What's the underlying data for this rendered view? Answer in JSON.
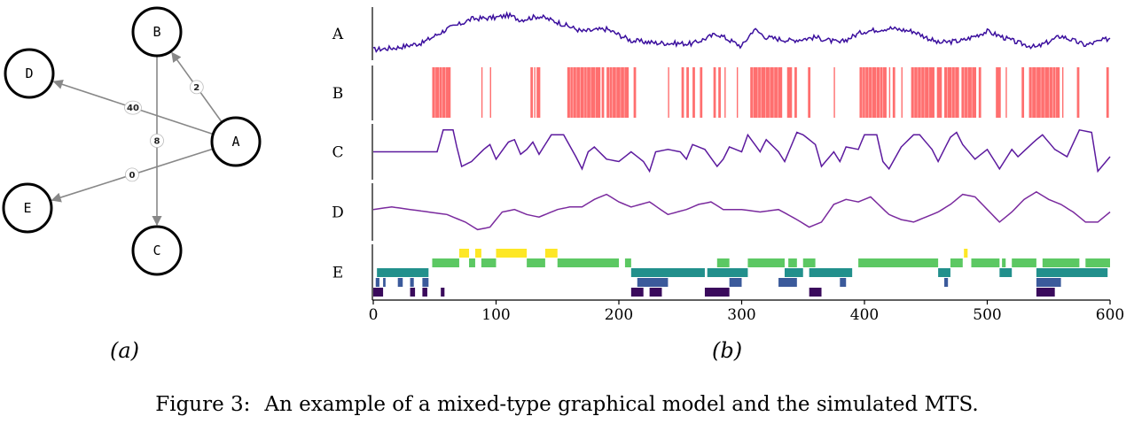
{
  "graph": {
    "nodes": [
      {
        "id": "B"
      },
      {
        "id": "D"
      },
      {
        "id": "A"
      },
      {
        "id": "E"
      },
      {
        "id": "C"
      }
    ],
    "edges": [
      {
        "from": "A",
        "to": "B",
        "weight": "2"
      },
      {
        "from": "A",
        "to": "D",
        "weight": "40"
      },
      {
        "from": "A",
        "to": "E",
        "weight": "0"
      },
      {
        "from": "B",
        "to": "C",
        "weight": "8"
      }
    ],
    "colors": {
      "node_stroke": "#000000",
      "edge": "#888888"
    }
  },
  "panels": {
    "a": "(a)",
    "b": "(b)"
  },
  "caption": {
    "number": "Figure 3:",
    "text": "An example of a mixed-type graphical model and the simulated MTS."
  },
  "chart_data": {
    "type": "line",
    "x_ticks": [
      "0",
      "100",
      "200",
      "300",
      "400",
      "500",
      "600"
    ],
    "xlim": [
      0,
      600
    ],
    "rows": [
      "A",
      "B",
      "C",
      "D",
      "E"
    ],
    "colors": {
      "A": "#3b0f9e",
      "B": "#ff6f6f",
      "C": "#5c1a9e",
      "D": "#7a2a9e",
      "E": [
        "#3a0a5c",
        "#3b5a9b",
        "#22908c",
        "#5cc863",
        "#fde725"
      ]
    },
    "series": [
      {
        "name": "A",
        "kind": "continuous",
        "x": [
          0,
          20,
          40,
          60,
          70,
          80,
          100,
          110,
          120,
          135,
          150,
          170,
          190,
          210,
          230,
          260,
          280,
          300,
          310,
          320,
          340,
          360,
          380,
          395,
          400,
          420,
          440,
          460,
          480,
          500,
          510,
          525,
          540,
          560,
          580,
          600
        ],
        "values": [
          0.15,
          0.2,
          0.3,
          0.6,
          0.7,
          0.82,
          0.85,
          0.9,
          0.8,
          0.88,
          0.75,
          0.55,
          0.6,
          0.35,
          0.3,
          0.28,
          0.5,
          0.22,
          0.6,
          0.42,
          0.35,
          0.42,
          0.3,
          0.5,
          0.55,
          0.62,
          0.55,
          0.3,
          0.35,
          0.55,
          0.45,
          0.3,
          0.2,
          0.45,
          0.25,
          0.4
        ]
      },
      {
        "name": "B",
        "kind": "binary",
        "on_intervals": [
          [
            48,
            63
          ],
          [
            88,
            89
          ],
          [
            95,
            96
          ],
          [
            128,
            130
          ],
          [
            131,
            132
          ],
          [
            133,
            136
          ],
          [
            158,
            185
          ],
          [
            186,
            188
          ],
          [
            190,
            208
          ],
          [
            212,
            214
          ],
          [
            240,
            241
          ],
          [
            251,
            253
          ],
          [
            255,
            257
          ],
          [
            260,
            262
          ],
          [
            266,
            268
          ],
          [
            277,
            279
          ],
          [
            281,
            283
          ],
          [
            286,
            287
          ],
          [
            296,
            297
          ],
          [
            307,
            333
          ],
          [
            337,
            341
          ],
          [
            343,
            345
          ],
          [
            354,
            356
          ],
          [
            375,
            376
          ],
          [
            396,
            418
          ],
          [
            420,
            421
          ],
          [
            423,
            425
          ],
          [
            430,
            431
          ],
          [
            438,
            457
          ],
          [
            459,
            463
          ],
          [
            465,
            477
          ],
          [
            479,
            491
          ],
          [
            493,
            495
          ],
          [
            507,
            511
          ],
          [
            515,
            516
          ],
          [
            528,
            530
          ],
          [
            534,
            559
          ],
          [
            561,
            562
          ],
          [
            573,
            575
          ],
          [
            597,
            599
          ]
        ]
      },
      {
        "name": "C",
        "kind": "continuous",
        "x": [
          0,
          52,
          57,
          65,
          68,
          72,
          80,
          90,
          95,
          100,
          110,
          115,
          120,
          125,
          130,
          135,
          145,
          155,
          165,
          170,
          175,
          180,
          190,
          200,
          210,
          220,
          225,
          230,
          240,
          250,
          255,
          260,
          270,
          280,
          285,
          290,
          300,
          305,
          315,
          320,
          330,
          335,
          345,
          350,
          360,
          365,
          375,
          380,
          385,
          395,
          400,
          410,
          415,
          420,
          430,
          440,
          445,
          455,
          460,
          470,
          475,
          480,
          490,
          500,
          510,
          520,
          525,
          540,
          545,
          555,
          565,
          575,
          585,
          590,
          600
        ],
        "values": [
          0.5,
          0.5,
          0.95,
          0.95,
          0.6,
          0.2,
          0.3,
          0.55,
          0.65,
          0.35,
          0.7,
          0.75,
          0.45,
          0.55,
          0.7,
          0.45,
          0.85,
          0.85,
          0.4,
          0.15,
          0.5,
          0.6,
          0.35,
          0.3,
          0.5,
          0.3,
          0.1,
          0.5,
          0.55,
          0.5,
          0.35,
          0.65,
          0.55,
          0.2,
          0.35,
          0.6,
          0.5,
          0.85,
          0.5,
          0.75,
          0.5,
          0.3,
          0.9,
          0.85,
          0.65,
          0.2,
          0.5,
          0.3,
          0.6,
          0.55,
          0.85,
          0.85,
          0.3,
          0.15,
          0.6,
          0.85,
          0.85,
          0.55,
          0.3,
          0.8,
          0.9,
          0.65,
          0.35,
          0.55,
          0.15,
          0.55,
          0.4,
          0.75,
          0.85,
          0.55,
          0.4,
          0.95,
          0.9,
          0.1,
          0.4
        ]
      },
      {
        "name": "D",
        "kind": "continuous",
        "x": [
          0,
          15,
          30,
          45,
          60,
          75,
          85,
          95,
          105,
          115,
          125,
          135,
          150,
          160,
          170,
          180,
          190,
          200,
          210,
          225,
          240,
          255,
          265,
          275,
          285,
          300,
          315,
          330,
          345,
          355,
          365,
          375,
          385,
          395,
          405,
          420,
          430,
          440,
          450,
          460,
          470,
          480,
          490,
          500,
          510,
          520,
          530,
          540,
          550,
          560,
          570,
          580,
          590,
          600
        ],
        "values": [
          0.55,
          0.6,
          0.55,
          0.5,
          0.45,
          0.3,
          0.15,
          0.2,
          0.5,
          0.55,
          0.45,
          0.4,
          0.55,
          0.6,
          0.6,
          0.75,
          0.85,
          0.7,
          0.6,
          0.7,
          0.45,
          0.55,
          0.65,
          0.7,
          0.55,
          0.55,
          0.5,
          0.55,
          0.35,
          0.2,
          0.3,
          0.65,
          0.75,
          0.7,
          0.8,
          0.45,
          0.35,
          0.3,
          0.4,
          0.5,
          0.65,
          0.85,
          0.8,
          0.55,
          0.3,
          0.5,
          0.75,
          0.9,
          0.75,
          0.65,
          0.5,
          0.3,
          0.3,
          0.5
        ]
      },
      {
        "name": "E",
        "kind": "categorical",
        "levels": [
          {
            "level": 4,
            "intervals": [
              [
                70,
                78
              ],
              [
                83,
                88
              ],
              [
                100,
                125
              ],
              [
                140,
                150
              ],
              [
                481,
                484
              ]
            ]
          },
          {
            "level": 3,
            "intervals": [
              [
                48,
                70
              ],
              [
                78,
                83
              ],
              [
                88,
                100
              ],
              [
                125,
                140
              ],
              [
                150,
                200
              ],
              [
                205,
                210
              ],
              [
                280,
                290
              ],
              [
                305,
                335
              ],
              [
                338,
                345
              ],
              [
                350,
                360
              ],
              [
                395,
                460
              ],
              [
                470,
                480
              ],
              [
                487,
                510
              ],
              [
                512,
                515
              ],
              [
                520,
                540
              ],
              [
                545,
                575
              ],
              [
                580,
                600
              ]
            ]
          },
          {
            "level": 2,
            "intervals": [
              [
                3,
                45
              ],
              [
                210,
                270
              ],
              [
                272,
                305
              ],
              [
                335,
                350
              ],
              [
                355,
                390
              ],
              [
                460,
                470
              ],
              [
                510,
                520
              ],
              [
                540,
                598
              ]
            ]
          },
          {
            "level": 1,
            "intervals": [
              [
                2,
                5
              ],
              [
                8,
                10
              ],
              [
                20,
                24
              ],
              [
                30,
                33
              ],
              [
                40,
                45
              ],
              [
                215,
                240
              ],
              [
                290,
                300
              ],
              [
                330,
                345
              ],
              [
                380,
                385
              ],
              [
                465,
                468
              ],
              [
                540,
                560
              ]
            ]
          },
          {
            "level": 0,
            "intervals": [
              [
                0,
                8
              ],
              [
                30,
                34
              ],
              [
                40,
                44
              ],
              [
                55,
                58
              ],
              [
                210,
                220
              ],
              [
                225,
                235
              ],
              [
                270,
                290
              ],
              [
                355,
                365
              ],
              [
                540,
                555
              ]
            ]
          }
        ]
      }
    ]
  }
}
